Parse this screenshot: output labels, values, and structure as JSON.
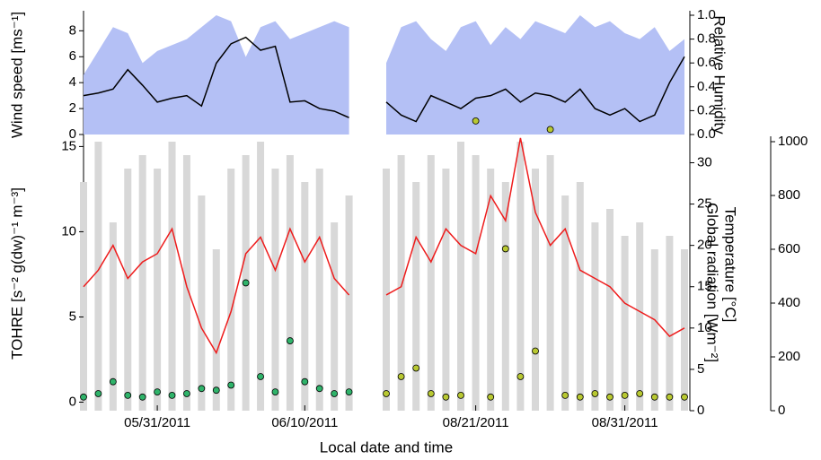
{
  "chart_data": [
    {
      "type": "line",
      "ylabel": "Wind speed [ms⁻¹]",
      "x": [
        "2011-05-26",
        "2011-05-27",
        "2011-05-28",
        "2011-05-29",
        "2011-05-30",
        "2011-05-31",
        "2011-06-01",
        "2011-06-02",
        "2011-06-03",
        "2011-06-04",
        "2011-06-05",
        "2011-06-06",
        "2011-06-07",
        "2011-06-08",
        "2011-06-09",
        "2011-06-10",
        "2011-06-11",
        "2011-06-12",
        "2011-06-13"
      ],
      "xlim": [
        "2011-05-26",
        "2011-06-14"
      ],
      "ylim": [
        0,
        9.2
      ],
      "yticks": [
        0,
        2,
        4,
        6,
        8
      ],
      "y2lim": [
        0,
        1
      ],
      "series": [
        {
          "style": "area",
          "axis": "y2",
          "color": "#b4c0f5",
          "values": [
            0.5,
            0.7,
            0.9,
            0.85,
            0.6,
            0.7,
            0.75,
            0.8,
            0.9,
            1.0,
            0.95,
            0.65,
            0.9,
            0.95,
            0.8,
            0.85,
            0.9,
            0.95,
            0.9
          ]
        },
        {
          "style": "line",
          "color": "#000000",
          "values": [
            3,
            3.2,
            3.5,
            5,
            3.8,
            2.5,
            2.8,
            3,
            2.2,
            5.5,
            7,
            7.5,
            6.5,
            6.8,
            2.5,
            2.6,
            2,
            1.8,
            1.3
          ]
        }
      ]
    },
    {
      "type": "scatter",
      "ylabel": "TOHRE [s⁻² g(dw)⁻¹ m⁻³]",
      "xlabel": "Local date and time",
      "x": [
        "2011-05-26",
        "2011-05-27",
        "2011-05-28",
        "2011-05-29",
        "2011-05-30",
        "2011-05-31",
        "2011-06-01",
        "2011-06-02",
        "2011-06-03",
        "2011-06-04",
        "2011-06-05",
        "2011-06-06",
        "2011-06-07",
        "2011-06-08",
        "2011-06-09",
        "2011-06-10",
        "2011-06-11",
        "2011-06-12",
        "2011-06-13"
      ],
      "xlim": [
        "2011-05-26",
        "2011-06-14"
      ],
      "xticks": [
        {
          "value": "2011-05-31",
          "label": "05/31/2011"
        },
        {
          "value": "2011-06-10",
          "label": "06/10/2011"
        }
      ],
      "ylim": [
        -0.5,
        15.6
      ],
      "yticks": [
        0,
        5,
        10,
        15
      ],
      "y2lim": [
        0,
        33.2
      ],
      "y3lim": [
        0,
        1020
      ],
      "series": [
        {
          "style": "bars",
          "axis": "y3",
          "color": "#d8d8d8",
          "values": [
            850,
            1000,
            700,
            900,
            950,
            900,
            1000,
            950,
            800,
            600,
            900,
            950,
            1000,
            900,
            950,
            850,
            900,
            700,
            800
          ]
        },
        {
          "style": "line",
          "axis": "y2",
          "color": "#ee1c1c",
          "values": [
            15,
            17,
            20,
            16,
            18,
            19,
            22,
            15,
            10,
            7,
            12,
            19,
            21,
            17,
            22,
            18,
            21,
            16,
            14
          ]
        },
        {
          "style": "points",
          "color": "#2fb36a",
          "values": [
            0.3,
            0.5,
            1.2,
            0.4,
            0.3,
            0.6,
            0.4,
            0.5,
            0.8,
            0.7,
            1,
            7,
            1.5,
            0.6,
            3.6,
            1.2,
            0.8,
            0.5,
            0.6
          ]
        }
      ]
    },
    {
      "type": "line",
      "y2label": "Relative Humidity",
      "x": [
        "2011-08-15",
        "2011-08-16",
        "2011-08-17",
        "2011-08-18",
        "2011-08-19",
        "2011-08-20",
        "2011-08-21",
        "2011-08-22",
        "2011-08-23",
        "2011-08-24",
        "2011-08-25",
        "2011-08-26",
        "2011-08-27",
        "2011-08-28",
        "2011-08-29",
        "2011-08-30",
        "2011-08-31",
        "2011-09-01",
        "2011-09-02",
        "2011-09-03",
        "2011-09-04"
      ],
      "xlim": [
        "2011-08-15",
        "2011-09-04"
      ],
      "ylim": [
        0,
        9.2
      ],
      "y2lim": [
        0,
        1
      ],
      "y2ticks": [
        {
          "value": 0,
          "label": "0.0"
        },
        {
          "value": 0.2,
          "label": "0.2"
        },
        {
          "value": 0.4,
          "label": "0.4"
        },
        {
          "value": 0.6,
          "label": "0.6"
        },
        {
          "value": 0.8,
          "label": "0.8"
        },
        {
          "value": 1,
          "label": "1.0"
        }
      ],
      "series": [
        {
          "style": "area",
          "axis": "y2",
          "color": "#b4c0f5",
          "values": [
            0.6,
            0.9,
            0.95,
            0.8,
            0.7,
            0.9,
            0.95,
            0.75,
            0.9,
            0.8,
            0.95,
            0.9,
            0.85,
            1.0,
            0.9,
            0.95,
            0.85,
            0.8,
            0.9,
            0.7,
            0.8
          ]
        },
        {
          "style": "line",
          "color": "#000000",
          "values": [
            2.5,
            1.5,
            1,
            3,
            2.5,
            2,
            2.8,
            3,
            3.5,
            2.5,
            3.2,
            3,
            2.5,
            3.5,
            2,
            1.5,
            2,
            1,
            1.5,
            4,
            6
          ]
        }
      ]
    },
    {
      "type": "scatter",
      "y2label": "Temperature [°C]",
      "y3label": "Global radiation [Wm⁻²]",
      "x": [
        "2011-08-15",
        "2011-08-16",
        "2011-08-17",
        "2011-08-18",
        "2011-08-19",
        "2011-08-20",
        "2011-08-21",
        "2011-08-22",
        "2011-08-23",
        "2011-08-24",
        "2011-08-25",
        "2011-08-26",
        "2011-08-27",
        "2011-08-28",
        "2011-08-29",
        "2011-08-30",
        "2011-08-31",
        "2011-09-01",
        "2011-09-02",
        "2011-09-03",
        "2011-09-04"
      ],
      "xlim": [
        "2011-08-15",
        "2011-09-04"
      ],
      "xticks": [
        {
          "value": "2011-08-21",
          "label": "08/21/2011"
        },
        {
          "value": "2011-08-31",
          "label": "08/31/2011"
        }
      ],
      "ylim": [
        -0.5,
        15.6
      ],
      "y2lim": [
        0,
        33.2
      ],
      "y2ticks": [
        0,
        5,
        10,
        15,
        20,
        25,
        30
      ],
      "y3lim": [
        0,
        1020
      ],
      "y3ticks": [
        0,
        200,
        400,
        600,
        800,
        1000
      ],
      "series": [
        {
          "style": "bars",
          "axis": "y3",
          "color": "#d8d8d8",
          "values": [
            900,
            950,
            850,
            950,
            900,
            1000,
            950,
            900,
            850,
            1000,
            900,
            950,
            800,
            850,
            700,
            750,
            650,
            700,
            600,
            650,
            600
          ]
        },
        {
          "style": "line",
          "axis": "y2",
          "color": "#ee1c1c",
          "values": [
            14,
            15,
            21,
            18,
            22,
            20,
            19,
            26,
            23,
            33,
            24,
            20,
            22,
            17,
            16,
            15,
            13,
            12,
            11,
            9,
            10
          ]
        },
        {
          "style": "points",
          "color": "#b8c832",
          "values": [
            0.5,
            1.5,
            2,
            0.5,
            0.3,
            0.4,
            16.5,
            0.3,
            9,
            1.5,
            3,
            16,
            0.4,
            0.3,
            0.5,
            0.3,
            0.4,
            0.5,
            0.3,
            0.3,
            0.3
          ]
        }
      ]
    }
  ]
}
